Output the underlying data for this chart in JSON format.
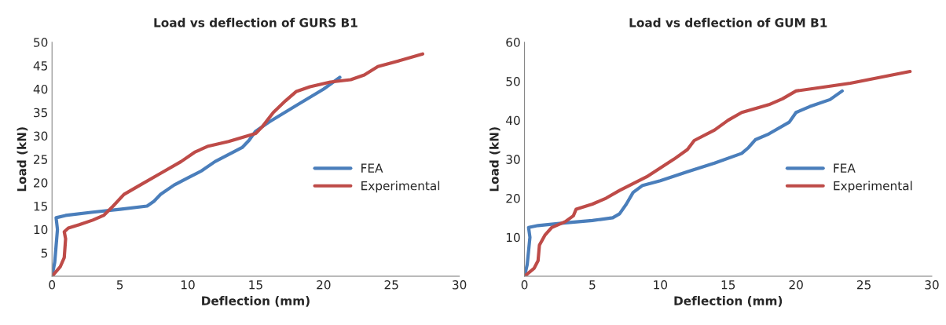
{
  "chart_data": [
    {
      "type": "line",
      "title": "Load vs deflection of GURS B1",
      "xlabel": "Deflection (mm)",
      "ylabel": "Load (kN)",
      "xlim": [
        0,
        30
      ],
      "xticks": [
        0,
        5,
        10,
        15,
        20,
        25,
        30
      ],
      "ylim": [
        0,
        50
      ],
      "yticks": [
        {
          "value": 0,
          "label": null
        },
        5,
        10,
        15,
        20,
        25,
        30,
        35,
        40,
        45,
        50
      ],
      "grid": false,
      "legend": "right",
      "marker": "none",
      "line_style": "solid",
      "series": [
        {
          "name": "FEA",
          "color": "#4a7ebb",
          "x": [
            0,
            0.2,
            0.4,
            0.3,
            1,
            3,
            5,
            7,
            7.5,
            8,
            9,
            10,
            11,
            12,
            13,
            14,
            14.5,
            15,
            16,
            18,
            20,
            21.2
          ],
          "values": [
            0,
            3,
            10,
            12.5,
            13,
            13.7,
            14.3,
            15,
            16,
            17.5,
            19.5,
            21,
            22.5,
            24.5,
            26,
            27.5,
            29,
            31,
            33,
            36.5,
            40,
            42.5
          ]
        },
        {
          "name": "Experimental",
          "color": "#be4b48",
          "x": [
            0,
            0.6,
            0.9,
            1,
            0.9,
            1.2,
            2,
            3,
            3.8,
            4.5,
            5.3,
            6.5,
            8,
            9.5,
            10.5,
            11.5,
            13,
            15,
            15.5,
            16.3,
            17.2,
            18,
            19,
            20.5,
            22,
            23,
            24,
            25.5,
            27.3
          ],
          "values": [
            0,
            2,
            4,
            8,
            9.5,
            10.3,
            11,
            12,
            13,
            15,
            17.5,
            19.5,
            22,
            24.5,
            26.5,
            27.8,
            28.8,
            30.5,
            32,
            35,
            37.5,
            39.5,
            40.5,
            41.5,
            42,
            43,
            44.8,
            46,
            47.5
          ]
        }
      ]
    },
    {
      "type": "line",
      "title": "Load vs deflection of GUM B1",
      "xlabel": "Deflection (mm)",
      "ylabel": "Load (kN)",
      "xlim": [
        0,
        30
      ],
      "xticks": [
        0,
        5,
        10,
        15,
        20,
        25,
        30
      ],
      "ylim": [
        0,
        60
      ],
      "yticks": [
        {
          "value": 0,
          "label": null
        },
        10,
        20,
        30,
        40,
        50,
        60
      ],
      "grid": false,
      "legend": "right",
      "marker": "none",
      "line_style": "solid",
      "series": [
        {
          "name": "FEA",
          "color": "#4a7ebb",
          "x": [
            0,
            0.2,
            0.4,
            0.3,
            1,
            3,
            5,
            6.5,
            7,
            7.5,
            8,
            8.7,
            10,
            12,
            14,
            16,
            16.5,
            17,
            18,
            19.5,
            20,
            21,
            22.5,
            23.4
          ],
          "values": [
            0,
            3,
            10,
            12.5,
            13,
            13.7,
            14.3,
            15,
            16,
            18.5,
            21.5,
            23.3,
            24.5,
            26.8,
            29,
            31.5,
            33,
            35,
            36.5,
            39.5,
            42,
            43.5,
            45.3,
            47.5
          ]
        },
        {
          "name": "Experimental",
          "color": "#be4b48",
          "x": [
            0,
            0.7,
            1,
            1.1,
            1.5,
            2,
            3,
            3.6,
            3.8,
            5,
            6,
            7,
            9,
            11,
            12,
            12.5,
            14,
            15,
            16,
            18,
            19,
            20,
            22,
            24,
            28.4
          ],
          "values": [
            0,
            2,
            4,
            8,
            10.5,
            12.5,
            14,
            15.5,
            17.2,
            18.5,
            20,
            22,
            25.5,
            30,
            32.5,
            34.8,
            37.5,
            40,
            42,
            44,
            45.5,
            47.5,
            48.5,
            49.5,
            52.5
          ]
        }
      ]
    }
  ]
}
